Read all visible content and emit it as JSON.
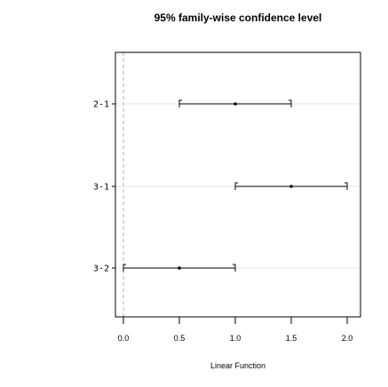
{
  "chart_data": {
    "type": "interval",
    "title": "95% family-wise confidence level",
    "xlabel": "Linear Function",
    "ylabel": "",
    "xlim": [
      -0.05,
      2.05
    ],
    "xticks": [
      0.0,
      0.5,
      1.0,
      1.5,
      2.0
    ],
    "xtick_labels": [
      "0.0",
      "0.5",
      "1.0",
      "1.5",
      "2.0"
    ],
    "zero_reference_line": true,
    "grid": true,
    "comparisons": [
      {
        "label": "2-1",
        "estimate": 1.0,
        "lower": 0.5,
        "upper": 1.5
      },
      {
        "label": "3-1",
        "estimate": 1.5,
        "lower": 1.0,
        "upper": 2.0
      },
      {
        "label": "3-2",
        "estimate": 0.5,
        "lower": 0.0,
        "upper": 1.0
      }
    ],
    "colors": {
      "interval": "#000000",
      "grid": "#e6e6e6",
      "zero_line": "#b0b0b0"
    }
  }
}
